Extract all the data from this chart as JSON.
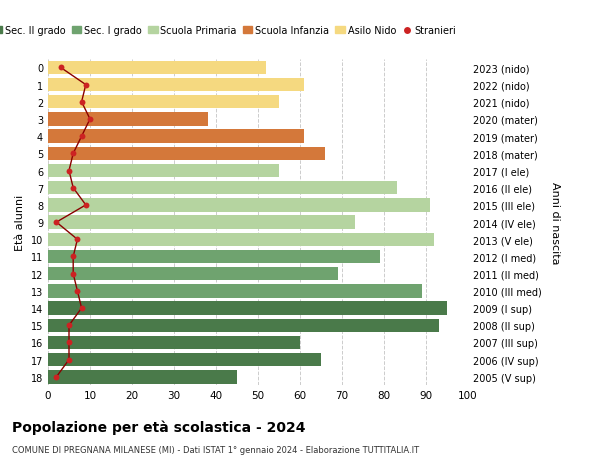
{
  "ages": [
    0,
    1,
    2,
    3,
    4,
    5,
    6,
    7,
    8,
    9,
    10,
    11,
    12,
    13,
    14,
    15,
    16,
    17,
    18
  ],
  "labels_right": [
    "2023 (nido)",
    "2022 (nido)",
    "2021 (nido)",
    "2020 (mater)",
    "2019 (mater)",
    "2018 (mater)",
    "2017 (I ele)",
    "2016 (II ele)",
    "2015 (III ele)",
    "2014 (IV ele)",
    "2013 (V ele)",
    "2012 (I med)",
    "2011 (II med)",
    "2010 (III med)",
    "2009 (I sup)",
    "2008 (II sup)",
    "2007 (III sup)",
    "2006 (IV sup)",
    "2005 (V sup)"
  ],
  "bar_values": [
    52,
    61,
    55,
    38,
    61,
    66,
    55,
    83,
    91,
    73,
    92,
    79,
    69,
    89,
    95,
    93,
    60,
    65,
    45
  ],
  "bar_colors": [
    "#f5d980",
    "#f5d980",
    "#f5d980",
    "#d4783a",
    "#d4783a",
    "#d4783a",
    "#b5d4a0",
    "#b5d4a0",
    "#b5d4a0",
    "#b5d4a0",
    "#b5d4a0",
    "#6fa36f",
    "#6fa36f",
    "#6fa36f",
    "#4a7a4a",
    "#4a7a4a",
    "#4a7a4a",
    "#4a7a4a",
    "#4a7a4a"
  ],
  "stranieri_values": [
    3,
    9,
    8,
    10,
    8,
    6,
    5,
    6,
    9,
    2,
    7,
    6,
    6,
    7,
    8,
    5,
    5,
    5,
    2
  ],
  "legend_labels": [
    "Sec. II grado",
    "Sec. I grado",
    "Scuola Primaria",
    "Scuola Infanzia",
    "Asilo Nido",
    "Stranieri"
  ],
  "legend_colors": [
    "#4a7a4a",
    "#6fa36f",
    "#b5d4a0",
    "#d4783a",
    "#f5d980",
    "#cc2222"
  ],
  "ylabel_left": "Età alunni",
  "ylabel_right": "Anni di nascita",
  "title": "Popolazione per età scolastica - 2024",
  "subtitle": "COMUNE DI PREGNANA MILANESE (MI) - Dati ISTAT 1° gennaio 2024 - Elaborazione TUTTITALIA.IT",
  "xlim": [
    0,
    100
  ],
  "xticks": [
    0,
    10,
    20,
    30,
    40,
    50,
    60,
    70,
    80,
    90,
    100
  ],
  "background_color": "#ffffff",
  "grid_color": "#cccccc"
}
